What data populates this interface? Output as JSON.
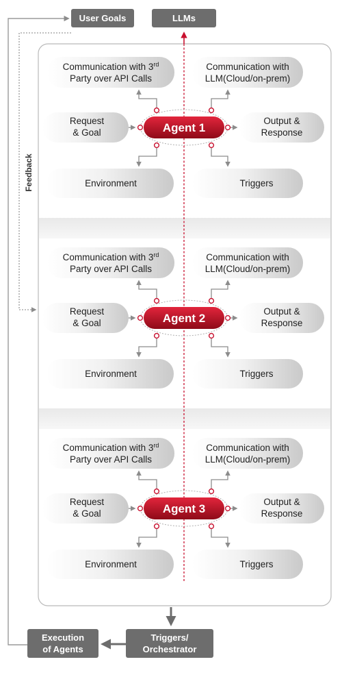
{
  "top": {
    "user_goals": "User Goals",
    "llms": "LLMs"
  },
  "feedback_label": "Feedback",
  "agents": [
    {
      "name": "Agent 1",
      "comm_api_line1": "Communication with 3",
      "comm_api_sup": "rd",
      "comm_api_line2": "Party over API Calls",
      "comm_llm_line1": "Communication with",
      "comm_llm_line2": "LLM(Cloud/on-prem)",
      "request_line1": "Request",
      "request_line2": "& Goal",
      "output_line1": "Output &",
      "output_line2": "Response",
      "environment": "Environment",
      "triggers": "Triggers"
    },
    {
      "name": "Agent 2",
      "comm_api_line1": "Communication with 3",
      "comm_api_sup": "rd",
      "comm_api_line2": "Party over API Calls",
      "comm_llm_line1": "Communication with",
      "comm_llm_line2": "LLM(Cloud/on-prem)",
      "request_line1": "Request",
      "request_line2": "& Goal",
      "output_line1": "Output &",
      "output_line2": "Response",
      "environment": "Environment",
      "triggers": "Triggers"
    },
    {
      "name": "Agent 3",
      "comm_api_line1": "Communication with 3",
      "comm_api_sup": "rd",
      "comm_api_line2": "Party over API Calls",
      "comm_llm_line1": "Communication with",
      "comm_llm_line2": "LLM(Cloud/on-prem)",
      "request_line1": "Request",
      "request_line2": "& Goal",
      "output_line1": "Output &",
      "output_line2": "Response",
      "environment": "Environment",
      "triggers": "Triggers"
    }
  ],
  "bottom": {
    "execution_line1": "Execution",
    "execution_line2": "of Agents",
    "triggers_line1": "Triggers/",
    "triggers_line2": "Orchestrator"
  },
  "colors": {
    "accent_red": "#c8102e",
    "dark_box": "#6d6d6d",
    "connector_gray": "#8c8c8c",
    "agent_gradient_top": "#e2253c",
    "agent_gradient_bottom": "#8e0a18"
  }
}
